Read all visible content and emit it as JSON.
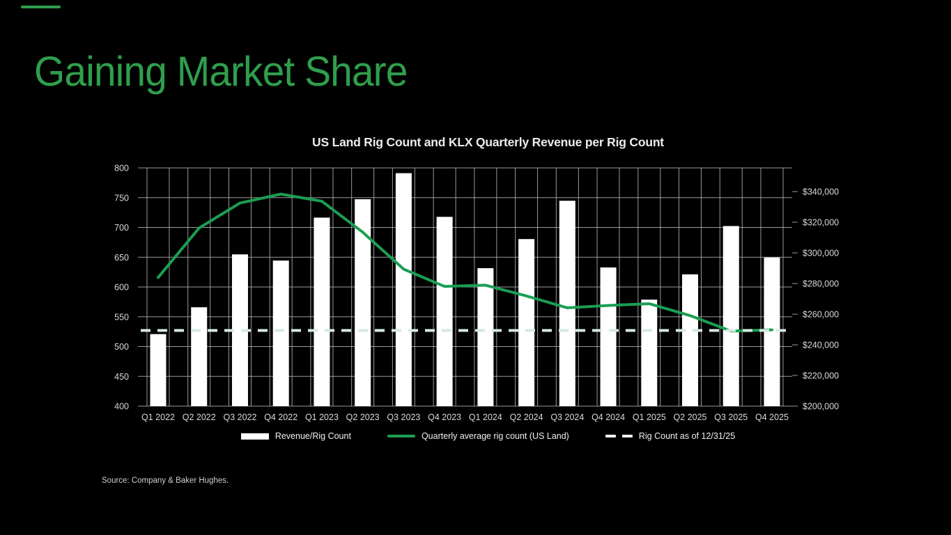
{
  "slide": {
    "title": "Gaining Market Share",
    "title_color": "#2f9e4c",
    "accent_dash_color": "#2f9e4c",
    "background": "#000000",
    "source_note": "Source: Company & Baker Hughes."
  },
  "chart_data": {
    "type": "combo-bar-line",
    "title": "US Land Rig Count and KLX Quarterly Revenue per Rig Count",
    "categories": [
      "Q1 2022",
      "Q2 2022",
      "Q3 2022",
      "Q4 2022",
      "Q1 2023",
      "Q2 2023",
      "Q3 2023",
      "Q4 2023",
      "Q1 2024",
      "Q2 2024",
      "Q3 2024",
      "Q4 2024",
      "Q1 2025",
      "Q2 2025",
      "Q3 2025",
      "Q4 2025"
    ],
    "series": [
      {
        "name": "Revenue/Rig Count",
        "type": "bar",
        "axis": "right",
        "color": "#ffffff",
        "values": [
          247000,
          264500,
          299000,
          295000,
          323000,
          335000,
          352000,
          323500,
          290000,
          309000,
          334000,
          290500,
          269500,
          286000,
          317500,
          297000
        ]
      },
      {
        "name": "Quarterly average rig count (US Land)",
        "type": "line",
        "axis": "left",
        "color": "#1b9e52",
        "values": [
          616,
          699,
          741,
          756,
          744,
          692,
          630,
          601,
          603,
          585,
          565,
          569,
          572,
          552,
          526,
          528
        ]
      },
      {
        "name": "Rig Count as of 12/31/25",
        "type": "dashed-line",
        "axis": "left",
        "color": "#d4eadf",
        "values": [
          527,
          527,
          527,
          527,
          527,
          527,
          527,
          527,
          527,
          527,
          527,
          527,
          527,
          527,
          527,
          527
        ]
      }
    ],
    "left_axis": {
      "min": 400,
      "max": 800,
      "step": 50,
      "ticks": [
        400,
        450,
        500,
        550,
        600,
        650,
        700,
        750,
        800
      ]
    },
    "right_axis": {
      "min": 200000,
      "max": 340000,
      "step": 20000,
      "ticks": [
        200000,
        220000,
        240000,
        260000,
        280000,
        300000,
        320000,
        340000
      ],
      "tick_labels": [
        "$200,000",
        "$220,000",
        "$240,000",
        "$260,000",
        "$280,000",
        "$300,000",
        "$320,000",
        "$340,000"
      ]
    },
    "grid": true,
    "legend_position": "bottom",
    "axis_text_color": "#d9d9d9",
    "gridline_color": "#9a9a9a"
  }
}
